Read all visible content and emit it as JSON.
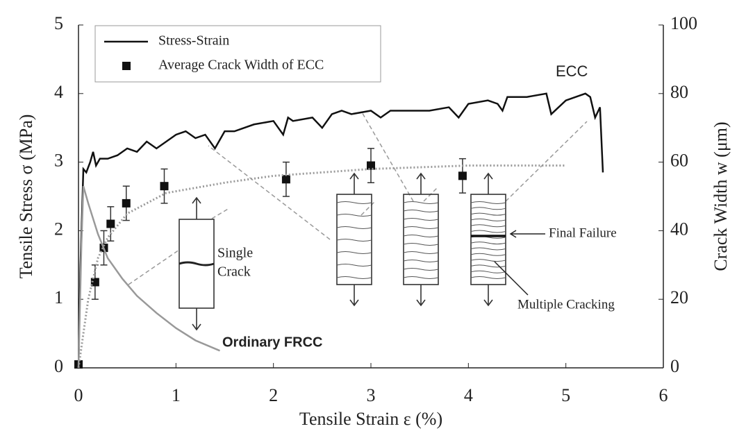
{
  "chart_data": {
    "type": "line",
    "xlabel": "Tensile Strain ε (%)",
    "ylabel": "Tensile Stress σ (MPa)",
    "y2label": "Crack Width w (μm)",
    "xlim": [
      0,
      6
    ],
    "xticks": [
      0,
      1,
      2,
      3,
      4,
      5,
      6
    ],
    "ylim": [
      0,
      5
    ],
    "yticks": [
      0,
      1,
      2,
      3,
      4,
      5
    ],
    "y2lim": [
      0,
      100
    ],
    "y2ticks": [
      0,
      20,
      40,
      60,
      80,
      100
    ],
    "series": [
      {
        "name": "Stress-Strain",
        "style": "line",
        "color": "#111111",
        "x": [
          0,
          0.02,
          0.05,
          0.08,
          0.12,
          0.15,
          0.18,
          0.22,
          0.3,
          0.4,
          0.5,
          0.6,
          0.7,
          0.8,
          0.9,
          1.0,
          1.1,
          1.2,
          1.3,
          1.4,
          1.5,
          1.6,
          1.8,
          2.0,
          2.1,
          2.15,
          2.2,
          2.4,
          2.5,
          2.6,
          2.7,
          2.8,
          3.0,
          3.1,
          3.2,
          3.4,
          3.6,
          3.8,
          3.9,
          4.0,
          4.2,
          4.3,
          4.35,
          4.4,
          4.6,
          4.8,
          4.85,
          5.0,
          5.2,
          5.25,
          5.3,
          5.35,
          5.38
        ],
        "values": [
          0,
          1.5,
          2.9,
          2.85,
          3.0,
          3.15,
          2.95,
          3.05,
          3.05,
          3.1,
          3.2,
          3.15,
          3.3,
          3.2,
          3.3,
          3.4,
          3.45,
          3.35,
          3.4,
          3.2,
          3.45,
          3.45,
          3.55,
          3.6,
          3.4,
          3.65,
          3.6,
          3.65,
          3.5,
          3.7,
          3.75,
          3.7,
          3.75,
          3.65,
          3.75,
          3.75,
          3.75,
          3.8,
          3.65,
          3.85,
          3.9,
          3.85,
          3.75,
          3.95,
          3.95,
          4.0,
          3.7,
          3.9,
          4.0,
          3.95,
          3.65,
          3.8,
          2.85
        ]
      },
      {
        "name": "Average Crack Width of ECC",
        "style": "markers",
        "axis": "y2",
        "color": "#111111",
        "x": [
          0,
          0.17,
          0.26,
          0.33,
          0.49,
          0.88,
          2.13,
          3.0,
          3.94
        ],
        "values": [
          1,
          25,
          35,
          42,
          48,
          53,
          55,
          59,
          56
        ],
        "errors": [
          null,
          5,
          5,
          5,
          5,
          5,
          5,
          5,
          5
        ]
      },
      {
        "style": "dotted",
        "axis": "y2",
        "color": "#999999",
        "x": [
          0,
          0.1,
          0.2,
          0.3,
          0.5,
          0.9,
          1.5,
          2.0,
          3.0,
          4.0,
          5.0
        ],
        "values": [
          0,
          20,
          32,
          38,
          45,
          51,
          54,
          56,
          58,
          59,
          59
        ]
      },
      {
        "style": "line",
        "color": "#999999",
        "x": [
          0,
          0.03,
          0.05,
          0.1,
          0.2,
          0.3,
          0.45,
          0.6,
          0.8,
          1.0,
          1.2,
          1.45
        ],
        "values": [
          0,
          1.8,
          2.65,
          2.4,
          1.95,
          1.6,
          1.3,
          1.05,
          0.8,
          0.58,
          0.4,
          0.25
        ]
      }
    ],
    "annotations": [
      "ECC",
      "Ordinary FRCC",
      "Single",
      "Crack",
      "Final Failure",
      "Multiple Cracking"
    ]
  }
}
